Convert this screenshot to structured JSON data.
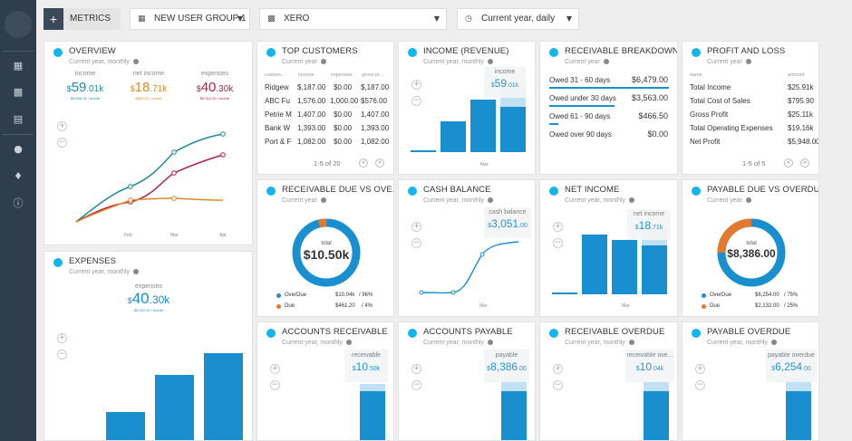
{
  "topbar": {
    "metrics_label": "METRICS",
    "group_label": "NEW USER GROUP 1",
    "source_label": "XERO",
    "period_label": "Current year, daily"
  },
  "overview": {
    "title": "OVERVIEW",
    "subtitle": "Current year, monthly",
    "income_label": "income",
    "income_cur": "$",
    "income_val": "59",
    "income_dec": ".01k",
    "income_small": "$5,806.00 / month",
    "net_label": "net income",
    "net_cur": "$",
    "net_val": "18",
    "net_dec": ".71k",
    "net_small": "$889.00 / month",
    "exp_label": "expenses",
    "exp_cur": "$",
    "exp_val": "40",
    "exp_dec": ".30k",
    "exp_small": "$5,312.00 / month",
    "x_labels": [
      "Feb",
      "Mar",
      "Apr"
    ],
    "colors": {
      "income": "#1f8a99",
      "net": "#b2213f",
      "expenses": "#e08a2b"
    }
  },
  "expenses": {
    "title": "EXPENSES",
    "subtitle": "Current year, monthly",
    "label": "expenses",
    "cur": "$",
    "val": "40",
    "dec": ".30k",
    "small": "$5,312.00 / month",
    "bars": [
      0,
      0.18,
      0.45,
      0.6
    ]
  },
  "top_customers": {
    "title": "TOP CUSTOMERS",
    "subtitle": "Current year",
    "headers": [
      "custom...",
      "income",
      "expenses",
      "gross pr..."
    ],
    "rows": [
      [
        "Ridgew",
        "$,187.00",
        "$0.00",
        "$,187.00"
      ],
      [
        "ABC Fu",
        "1,576.00",
        "1,000.00",
        "$576.00"
      ],
      [
        "Petrie M",
        "1,407.00",
        "$0.00",
        "1,407.00"
      ],
      [
        "Bank W",
        "1,393.00",
        "$0.00",
        "1,393.00"
      ],
      [
        "Port & F",
        "1,082.00",
        "$0.00",
        "1,082.00"
      ]
    ],
    "pager": "1-5 of 20"
  },
  "income_revenue": {
    "title": "INCOME (REVENUE)",
    "subtitle": "Current year, monthly",
    "tip_label": "income",
    "tip_cur": "$",
    "tip_val": "59",
    "tip_dec": ".01k",
    "x_label": "Mar",
    "bars": [
      0.02,
      0.42,
      0.7,
      0.85
    ]
  },
  "receivable_breakdown": {
    "title": "RECEIVABLE BREAKDOWN",
    "subtitle": "Current year",
    "rows": [
      {
        "label": "Owed 31 - 60 days",
        "value": "$6,479.00"
      },
      {
        "label": "Owed under 30 days",
        "value": "$3,563.00"
      },
      {
        "label": "Owed 61 - 90 days",
        "value": "$466.50"
      },
      {
        "label": "Owed over 90 days",
        "value": "$0.00"
      }
    ]
  },
  "profit_loss": {
    "title": "PROFIT AND LOSS",
    "subtitle": "Current year",
    "headers": [
      "name",
      "amount"
    ],
    "rows": [
      [
        "Total Income",
        "$25.91k"
      ],
      [
        "Total Cost of Sales",
        "$795.90"
      ],
      [
        "Gross Profit",
        "$25.11k"
      ],
      [
        "Total Operating Expenses",
        "$19.16k"
      ],
      [
        "Net Profit",
        "$5,948.00"
      ]
    ],
    "pager": "1-5 of 5"
  },
  "receivable_due": {
    "title": "RECEIVABLE DUE VS OVE...",
    "subtitle": "Current year",
    "center_label": "total",
    "center_value": "$10.50k",
    "legend": [
      {
        "label": "OverDue",
        "value": "$10.04k",
        "pct": "96%",
        "color": "#1a8fcf"
      },
      {
        "label": "Due",
        "value": "$461.20",
        "pct": "4%",
        "color": "#e07a2e"
      }
    ],
    "share": 0.96
  },
  "cash_balance": {
    "title": "CASH BALANCE",
    "subtitle": "Current year, monthly",
    "tip_label": "cash balance",
    "tip_cur": "$",
    "tip_val": "3,051",
    "tip_dec": ".00",
    "x_label": "Mar"
  },
  "net_income": {
    "title": "NET INCOME",
    "subtitle": "Current year, monthly",
    "tip_label": "net income",
    "tip_cur": "$",
    "tip_val": "18",
    "tip_dec": ".71k",
    "x_label": "Mar",
    "bars": [
      0.02,
      0.78,
      0.7,
      0.72
    ]
  },
  "payable_due": {
    "title": "PAYABLE DUE VS OVERDUE",
    "subtitle": "Current year",
    "center_label": "total",
    "center_value": "$8,386.00",
    "legend": [
      {
        "label": "OverDue",
        "value": "$6,254.00",
        "pct": "75%",
        "color": "#1a8fcf"
      },
      {
        "label": "Due",
        "value": "$2,132.00",
        "pct": "25%",
        "color": "#e07a2e"
      }
    ],
    "share": 0.75
  },
  "accounts_receivable": {
    "title": "ACCOUNTS RECEIVABLE",
    "subtitle": "Current year, monthly",
    "tip_label": "receivable",
    "tip_cur": "$",
    "tip_val": "10",
    "tip_dec": ".50k"
  },
  "accounts_payable": {
    "title": "ACCOUNTS PAYABLE",
    "subtitle": "Current year, monthly",
    "tip_label": "payable",
    "tip_cur": "$",
    "tip_val": "8,386",
    "tip_dec": ".00"
  },
  "receivable_overdue": {
    "title": "RECEIVABLE OVERDUE",
    "subtitle": "Current year, monthly",
    "tip_label": "receivable ove...",
    "tip_cur": "$",
    "tip_val": "10",
    "tip_dec": ".04k"
  },
  "payable_overdue": {
    "title": "PAYABLE OVERDUE",
    "subtitle": "Current year, monthly",
    "tip_label": "payable overdue",
    "tip_cur": "$",
    "tip_val": "6,254",
    "tip_dec": ".00"
  }
}
